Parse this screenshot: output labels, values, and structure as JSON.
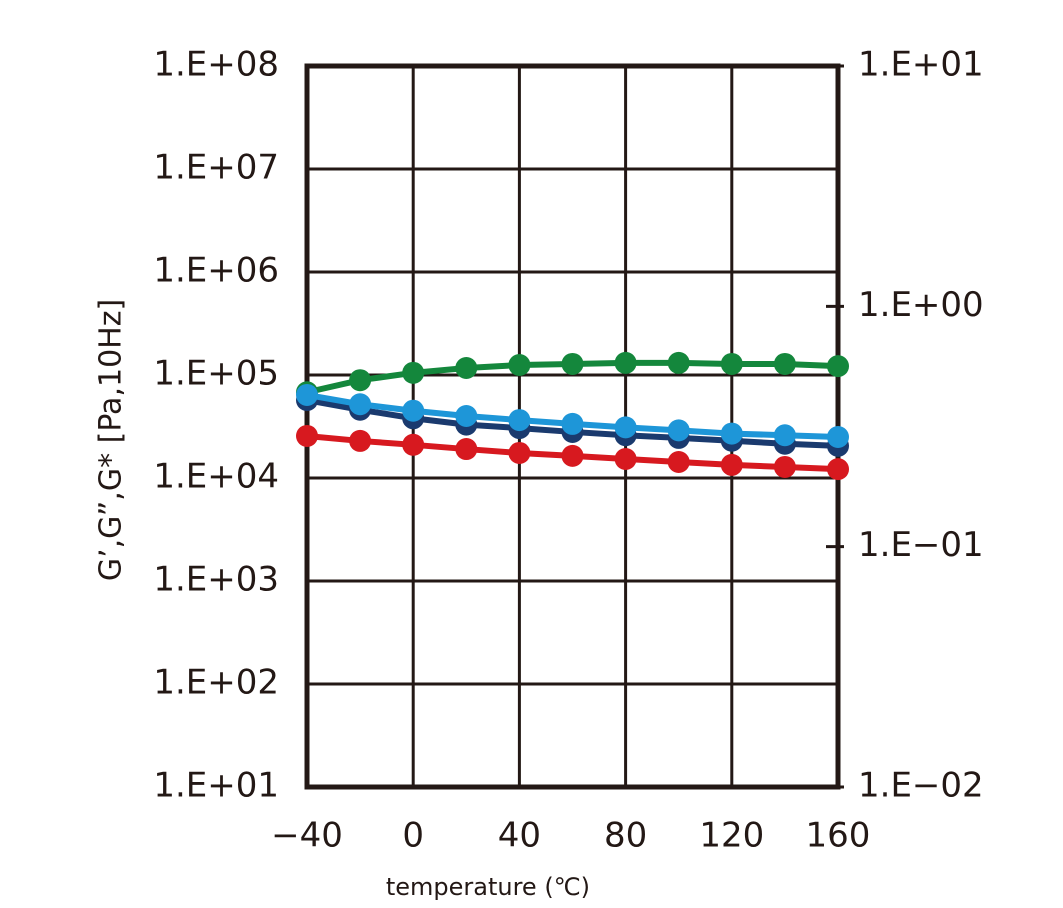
{
  "chart_data": {
    "type": "line",
    "xlabel": "temperature (℃)",
    "ylabel": "G’,G”,G* [Pa,10Hz]",
    "x": [
      -40,
      -20,
      0,
      20,
      40,
      60,
      80,
      100,
      120,
      140,
      160
    ],
    "xlim": [
      -40,
      160
    ],
    "xticks": [
      {
        "value": -40,
        "label": "−40"
      },
      0,
      40,
      80,
      120,
      160
    ],
    "ylim": [
      10,
      100000000
    ],
    "ylog": true,
    "yticks": [
      {
        "value": 10,
        "label": "1.E+01"
      },
      {
        "value": 100,
        "label": "1.E+02"
      },
      {
        "value": 1000,
        "label": "1.E+03"
      },
      {
        "value": 10000,
        "label": "1.E+04"
      },
      {
        "value": 100000,
        "label": "1.E+05"
      },
      {
        "value": 1000000,
        "label": "1.E+06"
      },
      {
        "value": 10000000,
        "label": "1.E+07"
      },
      {
        "value": 100000000,
        "label": "1.E+08"
      }
    ],
    "y2lim": [
      0.01,
      10
    ],
    "y2log": true,
    "y2ticks": [
      {
        "value": 0.01,
        "label": "1.E−02"
      },
      {
        "value": 0.1,
        "label": "1.E−01"
      },
      {
        "value": 1,
        "label": "1.E+00"
      },
      {
        "value": 10,
        "label": "1.E+01"
      }
    ],
    "grid": true,
    "series": [
      {
        "color": "#14873c",
        "values": [
          68000,
          89000,
          105000,
          117000,
          125000,
          128000,
          131000,
          131000,
          128000,
          128000,
          122000
        ]
      },
      {
        "color": "#1a3a6e",
        "values": [
          57000,
          46000,
          38000,
          33000,
          30500,
          28000,
          26000,
          24500,
          23000,
          21500,
          20500
        ]
      },
      {
        "color": "#1e96d8",
        "values": [
          64000,
          52000,
          45000,
          40000,
          36500,
          33500,
          31000,
          29000,
          27000,
          26000,
          25000
        ]
      },
      {
        "color": "#d7191f",
        "values": [
          25600,
          22900,
          21000,
          19100,
          17500,
          16400,
          15300,
          14300,
          13400,
          12800,
          12200
        ]
      }
    ]
  }
}
